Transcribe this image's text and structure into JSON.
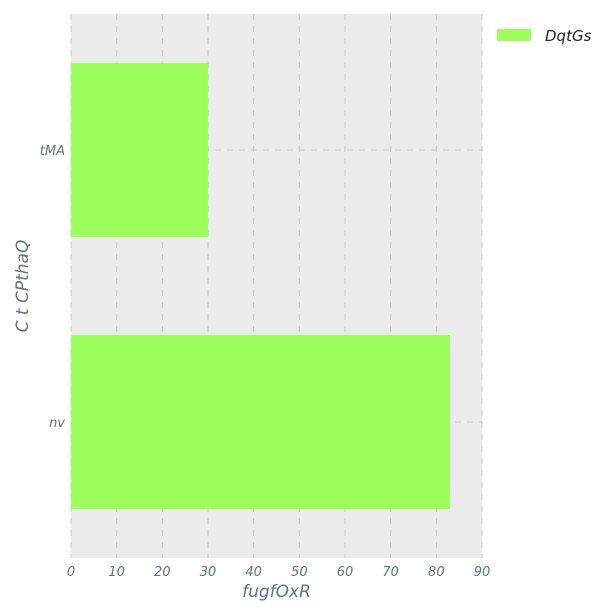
{
  "chart_data": {
    "type": "bar",
    "orientation": "horizontal",
    "categories": [
      "tMA",
      "nv"
    ],
    "series": [
      {
        "name": "DqtGs",
        "values": [
          30,
          83
        ]
      }
    ],
    "xlabel": "fugfOxR",
    "ylabel": "C t CPthaQ",
    "xlim": [
      0,
      90
    ],
    "xticks": [
      0,
      10,
      20,
      30,
      40,
      50,
      60,
      70,
      80,
      90
    ],
    "grid": true,
    "legend": "top-right, outside plot"
  },
  "colors": {
    "bar": "#9cff5a",
    "plot_background": "#ebebeb",
    "grid": "#c8c8c8",
    "text": "#5f7380"
  }
}
